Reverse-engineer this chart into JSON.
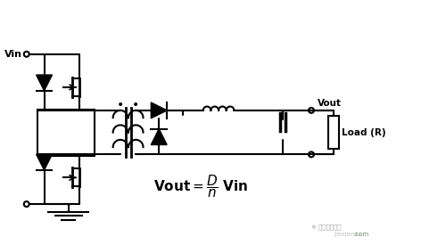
{
  "title": "",
  "bg_color": "#ffffff",
  "line_color": "#000000",
  "text_color": "#000000",
  "vin_label": "Vin",
  "vout_label": "Vout",
  "load_label": "Load (R)",
  "formula": "Vout = — Vin",
  "formula_num": "D",
  "formula_den": "n",
  "watermark1": "jiexiantu",
  "watermark2": ".com",
  "lw": 1.5,
  "fig_width": 5.0,
  "fig_height": 2.75
}
